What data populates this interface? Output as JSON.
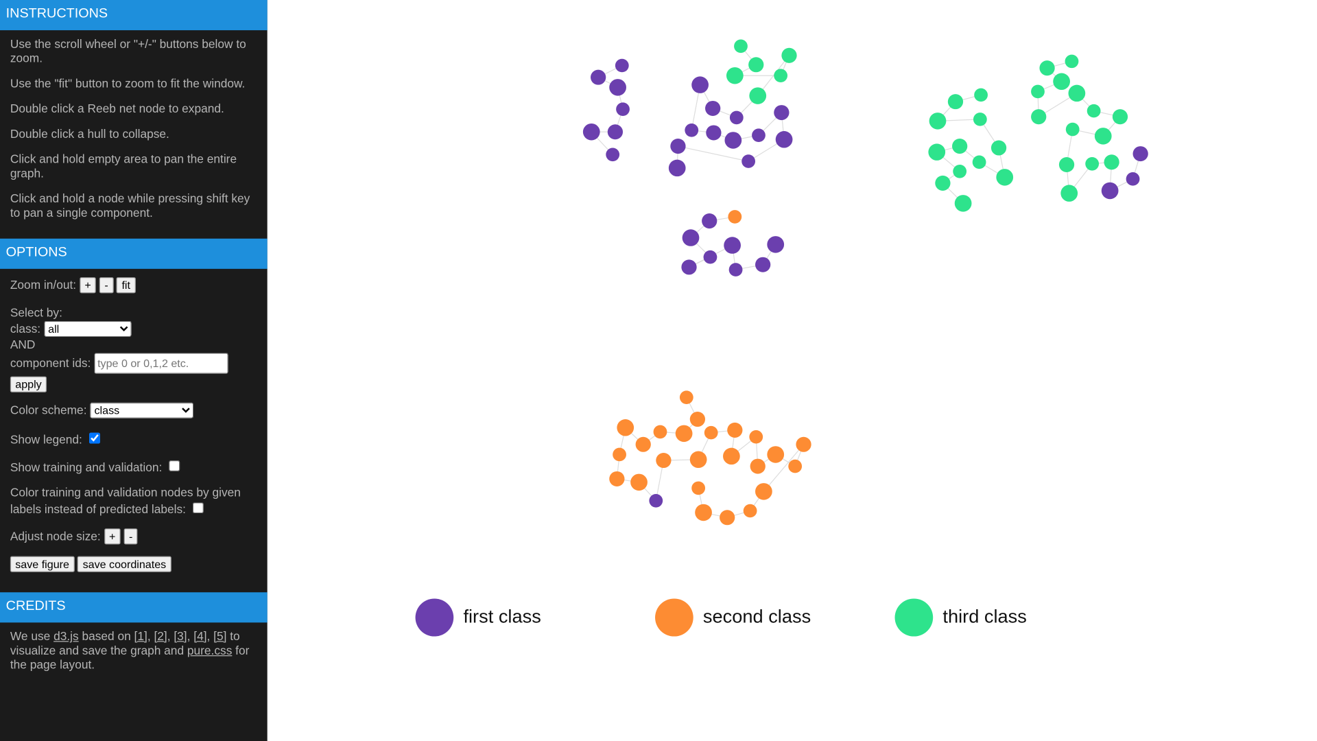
{
  "sidebar": {
    "instructions": {
      "title": "INSTRUCTIONS",
      "items": [
        "Use the scroll wheel or \"+/-\" buttons below to zoom.",
        "Use the \"fit\" button to zoom to fit the window.",
        "Double click a Reeb net node to expand.",
        "Double click a hull to collapse.",
        "Click and hold empty area to pan the entire graph.",
        "Click and hold a node while pressing shift key to pan a single component."
      ]
    },
    "options": {
      "title": "OPTIONS",
      "zoom_label": "Zoom in/out:",
      "zoom_buttons": [
        "+",
        "-",
        "fit"
      ],
      "select_by": "Select by:",
      "class_label": "class:",
      "class_value": "all",
      "and": "AND",
      "component_ids_label": "component ids:",
      "component_ids_placeholder": "type 0 or 0,1,2 etc.",
      "apply": "apply",
      "color_scheme_label": "Color scheme:",
      "color_scheme_value": "class",
      "show_legend": "Show legend:",
      "show_legend_checked": true,
      "show_training": "Show training and validation:",
      "show_training_checked": false,
      "color_training": "Color training and validation nodes by given labels instead of predicted labels:",
      "color_training_checked": false,
      "node_size_label": "Adjust node size:",
      "node_size_buttons": [
        "+",
        "-"
      ],
      "save_figure": "save figure",
      "save_coordinates": "save coordinates"
    },
    "credits": {
      "title": "CREDITS",
      "segments": [
        {
          "text": "We use ",
          "link": false
        },
        {
          "text": "d3.js",
          "link": true
        },
        {
          "text": " based on ",
          "link": false
        },
        {
          "text": "[1]",
          "link": true
        },
        {
          "text": ", ",
          "link": false
        },
        {
          "text": "[2]",
          "link": true
        },
        {
          "text": ", ",
          "link": false
        },
        {
          "text": "[3]",
          "link": true
        },
        {
          "text": ", ",
          "link": false
        },
        {
          "text": "[4]",
          "link": true
        },
        {
          "text": ", ",
          "link": false
        },
        {
          "text": "[5]",
          "link": true
        },
        {
          "text": " to visualize and save the graph and ",
          "link": false
        },
        {
          "text": "pure.css",
          "link": true
        },
        {
          "text": " for the page layout.",
          "link": false
        }
      ]
    }
  },
  "legend": [
    {
      "label": "first class",
      "color": "#6b3fae"
    },
    {
      "label": "second class",
      "color": "#fd8c33"
    },
    {
      "label": "third class",
      "color": "#2ee38c"
    }
  ]
}
